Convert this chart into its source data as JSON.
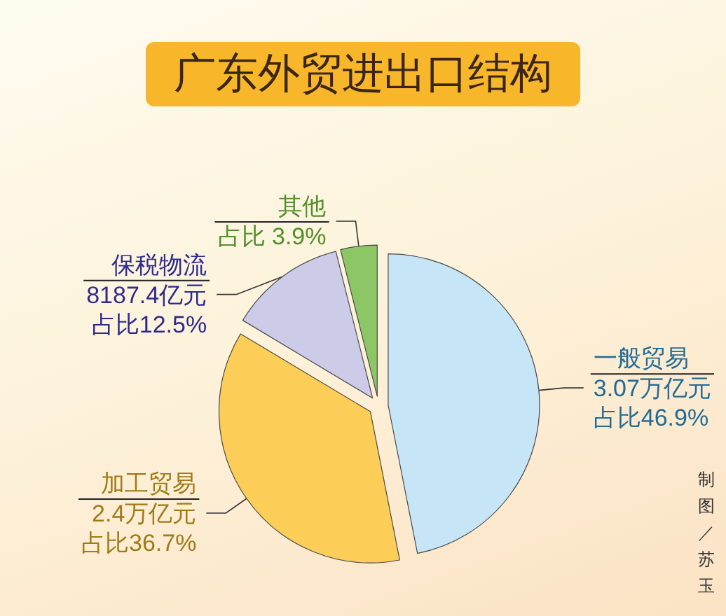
{
  "chart_data": {
    "type": "pie",
    "title": "广东外贸进出口结构",
    "categories": [
      "一般贸易",
      "加工贸易",
      "保税物流",
      "其他"
    ],
    "values": [
      46.9,
      36.7,
      12.5,
      3.9
    ],
    "value_labels": [
      "3.07万亿元占比46.9%",
      "2.4万亿元占比36.7%",
      "8187.4亿元占比12.5%",
      "占比 3.9%"
    ],
    "colors": [
      "#c6e6f8",
      "#fcce58",
      "#cccbe8",
      "#8cc665"
    ],
    "legend": false,
    "annotations": [
      "制图／苏玉"
    ]
  }
}
